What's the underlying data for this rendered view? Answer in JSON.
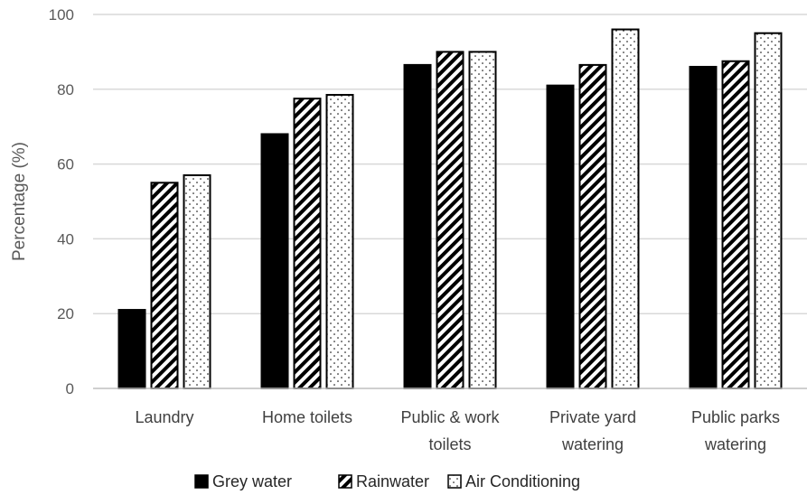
{
  "chart_data": {
    "type": "bar",
    "title": "",
    "xlabel": "",
    "ylabel": "Percentage (%)",
    "ylim": [
      0,
      100
    ],
    "yticks": [
      0,
      20,
      40,
      60,
      80,
      100
    ],
    "grid": true,
    "legend_position": "bottom",
    "categories": [
      [
        "Laundry"
      ],
      [
        "Home toilets"
      ],
      [
        "Public & work",
        "toilets"
      ],
      [
        "Private yard",
        "watering"
      ],
      [
        "Public parks",
        "watering"
      ]
    ],
    "series": [
      {
        "name": "Grey water",
        "pattern": "solid-black",
        "values": [
          21,
          68,
          86.5,
          81,
          86
        ]
      },
      {
        "name": "Rainwater",
        "pattern": "diagonal-hatch",
        "values": [
          55,
          77.5,
          90,
          86.5,
          87.5
        ]
      },
      {
        "name": "Air Conditioning",
        "pattern": "dots",
        "values": [
          57,
          78.5,
          90,
          96,
          95
        ]
      }
    ],
    "colors": {
      "bar_fill": "#000000",
      "bar_edge": "#000000",
      "grid": "#d9d9d9",
      "axis": "#bfbfbf"
    }
  }
}
